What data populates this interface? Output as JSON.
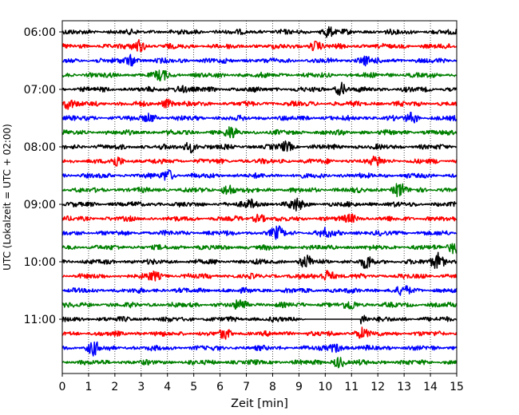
{
  "chart_data": {
    "type": "line",
    "title": "",
    "xlabel": "Zeit  [min]",
    "ylabel": "UTC (Lokalzeit = UTC + 02:00)",
    "xlim": [
      0,
      15
    ],
    "x_ticks": [
      "0",
      "1",
      "2",
      "3",
      "4",
      "5",
      "6",
      "7",
      "8",
      "9",
      "10",
      "11",
      "12",
      "13",
      "14",
      "15"
    ],
    "y_ticks": [
      {
        "label": "06:00",
        "trace": 0
      },
      {
        "label": "07:00",
        "trace": 4
      },
      {
        "label": "08:00",
        "trace": 8
      },
      {
        "label": "09:00",
        "trace": 12
      },
      {
        "label": "10:00",
        "trace": 16
      },
      {
        "label": "11:00",
        "trace": 20
      }
    ],
    "grid": "vertical dotted lines at each minute",
    "trace_interval_minutes": 15,
    "first_trace_start": "06:00",
    "trace_colors": [
      "#000000",
      "#ff0000",
      "#0000ff",
      "#008000"
    ],
    "series": [
      {
        "start": "06:00",
        "color": "#000000",
        "events": [
          {
            "t": 10.1,
            "amp": 1.4
          }
        ]
      },
      {
        "start": "06:15",
        "color": "#ff0000",
        "events": [
          {
            "t": 2.9,
            "amp": 1.8
          },
          {
            "t": 9.6,
            "amp": 1.2
          }
        ]
      },
      {
        "start": "06:30",
        "color": "#0000ff",
        "events": [
          {
            "t": 2.6,
            "amp": 1.5
          },
          {
            "t": 11.5,
            "amp": 1.2
          }
        ]
      },
      {
        "start": "06:45",
        "color": "#008000",
        "events": [
          {
            "t": 3.8,
            "amp": 1.4
          }
        ]
      },
      {
        "start": "07:00",
        "color": "#000000",
        "events": [
          {
            "t": 10.6,
            "amp": 1.6
          },
          {
            "t": 4.5,
            "amp": 1.1
          }
        ]
      },
      {
        "start": "07:15",
        "color": "#ff0000",
        "events": [
          {
            "t": 0.2,
            "amp": 1.5
          },
          {
            "t": 4.0,
            "amp": 1.2
          }
        ]
      },
      {
        "start": "07:30",
        "color": "#0000ff",
        "events": [
          {
            "t": 3.3,
            "amp": 1.2
          },
          {
            "t": 13.3,
            "amp": 1.3
          }
        ]
      },
      {
        "start": "07:45",
        "color": "#008000",
        "events": [
          {
            "t": 6.4,
            "amp": 1.4
          }
        ]
      },
      {
        "start": "08:00",
        "color": "#000000",
        "events": [
          {
            "t": 4.9,
            "amp": 1.5
          },
          {
            "t": 8.5,
            "amp": 1.3
          }
        ]
      },
      {
        "start": "08:15",
        "color": "#ff0000",
        "events": [
          {
            "t": 2.1,
            "amp": 1.2
          },
          {
            "t": 12.0,
            "amp": 1.2
          }
        ]
      },
      {
        "start": "08:30",
        "color": "#0000ff",
        "events": [
          {
            "t": 4.0,
            "amp": 1.6
          }
        ]
      },
      {
        "start": "08:45",
        "color": "#008000",
        "events": [
          {
            "t": 6.3,
            "amp": 1.5
          },
          {
            "t": 12.8,
            "amp": 1.8
          }
        ]
      },
      {
        "start": "09:00",
        "color": "#000000",
        "events": [
          {
            "t": 8.9,
            "amp": 1.6
          },
          {
            "t": 7.2,
            "amp": 1.1
          }
        ]
      },
      {
        "start": "09:15",
        "color": "#ff0000",
        "events": [
          {
            "t": 7.5,
            "amp": 1.1
          },
          {
            "t": 11.0,
            "amp": 1.1
          }
        ]
      },
      {
        "start": "09:30",
        "color": "#0000ff",
        "events": [
          {
            "t": 8.2,
            "amp": 1.6
          },
          {
            "t": 10.0,
            "amp": 1.1
          }
        ]
      },
      {
        "start": "09:45",
        "color": "#008000",
        "events": [
          {
            "t": 14.9,
            "amp": 1.9
          }
        ]
      },
      {
        "start": "10:00",
        "color": "#000000",
        "events": [
          {
            "t": 14.3,
            "amp": 2.4
          },
          {
            "t": 11.6,
            "amp": 1.6
          },
          {
            "t": 9.3,
            "amp": 1.6
          }
        ]
      },
      {
        "start": "10:15",
        "color": "#ff0000",
        "events": [
          {
            "t": 10.1,
            "amp": 1.8
          },
          {
            "t": 3.5,
            "amp": 1.2
          }
        ]
      },
      {
        "start": "10:30",
        "color": "#0000ff",
        "events": [
          {
            "t": 13.0,
            "amp": 1.2
          }
        ]
      },
      {
        "start": "10:45",
        "color": "#008000",
        "events": [
          {
            "t": 6.8,
            "amp": 1.3
          },
          {
            "t": 11.0,
            "amp": 1.2
          }
        ]
      },
      {
        "start": "11:00",
        "color": "#000000",
        "gap": [
          9.25,
          11.35
        ],
        "events": [
          {
            "t": 11.35,
            "amp": 1.8
          }
        ]
      },
      {
        "start": "11:15",
        "color": "#ff0000",
        "events": [
          {
            "t": 11.4,
            "amp": 1.5
          },
          {
            "t": 6.2,
            "amp": 1.1
          }
        ]
      },
      {
        "start": "11:30",
        "color": "#0000ff",
        "events": [
          {
            "t": 1.2,
            "amp": 1.8
          },
          {
            "t": 10.4,
            "amp": 1.3
          }
        ]
      },
      {
        "start": "11:45",
        "color": "#008000",
        "events": [
          {
            "t": 10.5,
            "amp": 1.4
          }
        ]
      }
    ]
  }
}
